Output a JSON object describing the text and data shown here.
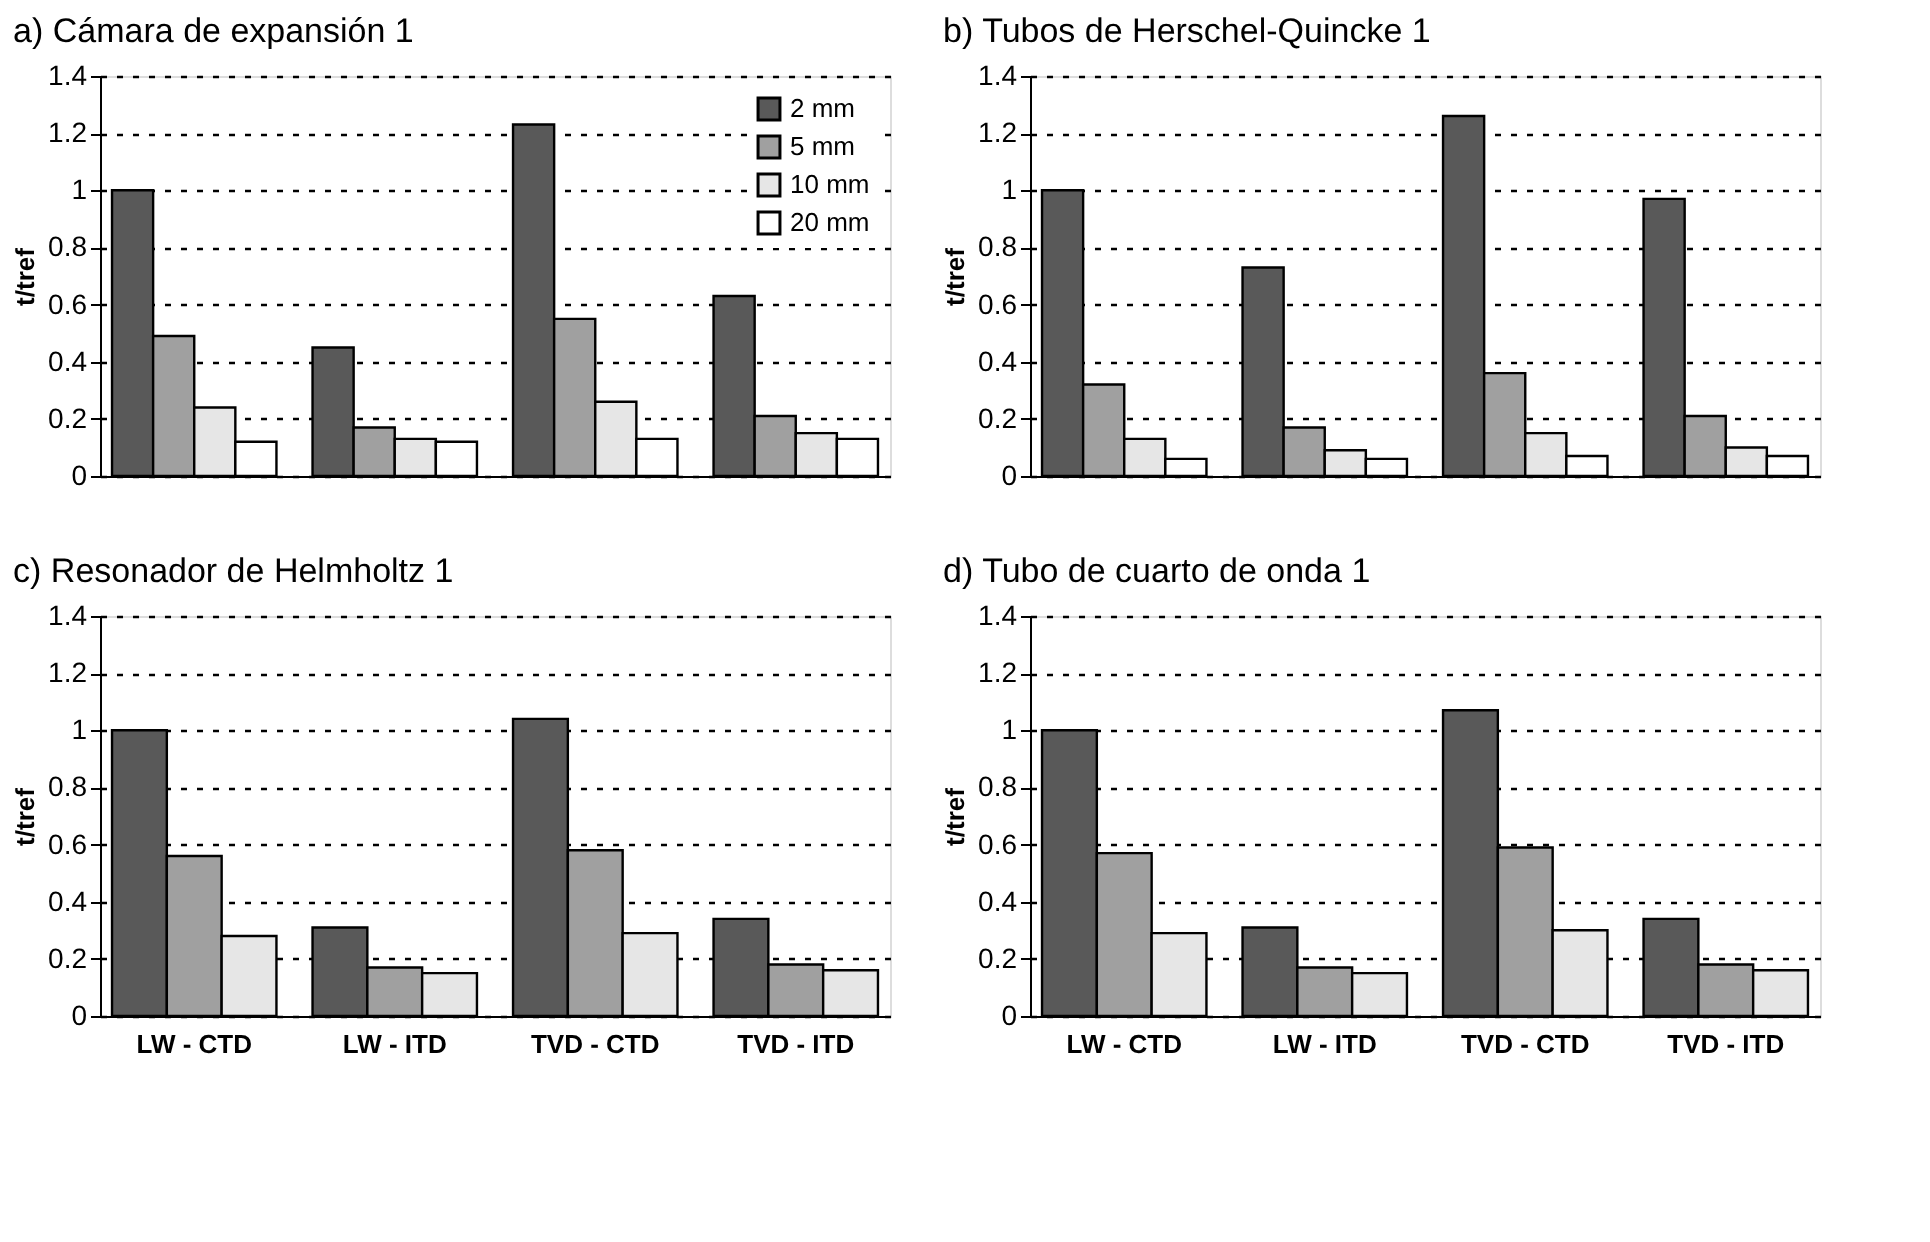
{
  "chart_data": [
    {
      "type": "bar",
      "title": "a) Cámara de expansión 1",
      "ylabel": "t/tref",
      "categories": [
        null,
        null,
        null,
        null
      ],
      "ylim": [
        0,
        1.4
      ],
      "yticks": [
        0,
        0.2,
        0.4,
        0.6,
        0.8,
        1,
        1.2,
        1.4
      ],
      "grid": "y",
      "legend": "top right",
      "tick_labels": "y",
      "series": [
        {
          "name": "2 mm",
          "color": "#595959",
          "values": [
            1.0,
            0.45,
            1.23,
            0.63
          ]
        },
        {
          "name": "5 mm",
          "color": "#a0a0a0",
          "values": [
            0.49,
            0.17,
            0.55,
            0.21
          ]
        },
        {
          "name": "10 mm",
          "color": "#e6e6e6",
          "values": [
            0.24,
            0.13,
            0.26,
            0.15
          ]
        },
        {
          "name": "20 mm",
          "color": "#ffffff",
          "values": [
            0.12,
            0.12,
            0.13,
            0.13
          ]
        }
      ]
    },
    {
      "type": "bar",
      "title": "b) Tubos de Herschel-Quincke 1",
      "ylabel": "t/tref",
      "categories": [
        null,
        null,
        null,
        null
      ],
      "ylim": [
        0,
        1.4
      ],
      "yticks": [
        0,
        0.2,
        0.4,
        0.6,
        0.8,
        1,
        1.2,
        1.4
      ],
      "grid": "y",
      "tick_labels": "y",
      "series": [
        {
          "color": "#595959",
          "values": [
            1.0,
            0.73,
            1.26,
            0.97
          ]
        },
        {
          "color": "#a0a0a0",
          "values": [
            0.32,
            0.17,
            0.36,
            0.21
          ]
        },
        {
          "color": "#e6e6e6",
          "values": [
            0.13,
            0.09,
            0.15,
            0.1
          ]
        },
        {
          "color": "#ffffff",
          "values": [
            0.06,
            0.06,
            0.07,
            0.07
          ]
        }
      ]
    },
    {
      "type": "bar",
      "title": "c) Resonador de Helmholtz 1",
      "ylabel": "t/tref",
      "categories": [
        "LW - CTD",
        "LW - ITD",
        "TVD - CTD",
        "TVD - ITD"
      ],
      "ylim": [
        0,
        1.4
      ],
      "yticks": [
        0,
        0.2,
        0.4,
        0.6,
        0.8,
        1,
        1.2,
        1.4
      ],
      "grid": "y",
      "series": [
        {
          "color": "#595959",
          "values": [
            1.0,
            0.31,
            1.04,
            0.34
          ]
        },
        {
          "color": "#a0a0a0",
          "values": [
            0.56,
            0.17,
            0.58,
            0.18
          ]
        },
        {
          "color": "#e6e6e6",
          "values": [
            0.28,
            0.15,
            0.29,
            0.16
          ]
        }
      ]
    },
    {
      "type": "bar",
      "title": "d) Tubo de cuarto de onda 1",
      "ylabel": "t/tref",
      "categories": [
        "LW - CTD",
        "LW - ITD",
        "TVD - CTD",
        "TVD - ITD"
      ],
      "ylim": [
        0,
        1.4
      ],
      "yticks": [
        0,
        0.2,
        0.4,
        0.6,
        0.8,
        1,
        1.2,
        1.4
      ],
      "grid": "y",
      "series": [
        {
          "color": "#595959",
          "values": [
            1.0,
            0.31,
            1.07,
            0.34
          ]
        },
        {
          "color": "#a0a0a0",
          "values": [
            0.57,
            0.17,
            0.59,
            0.18
          ]
        },
        {
          "color": "#e6e6e6",
          "values": [
            0.29,
            0.15,
            0.3,
            0.16
          ]
        }
      ]
    }
  ]
}
